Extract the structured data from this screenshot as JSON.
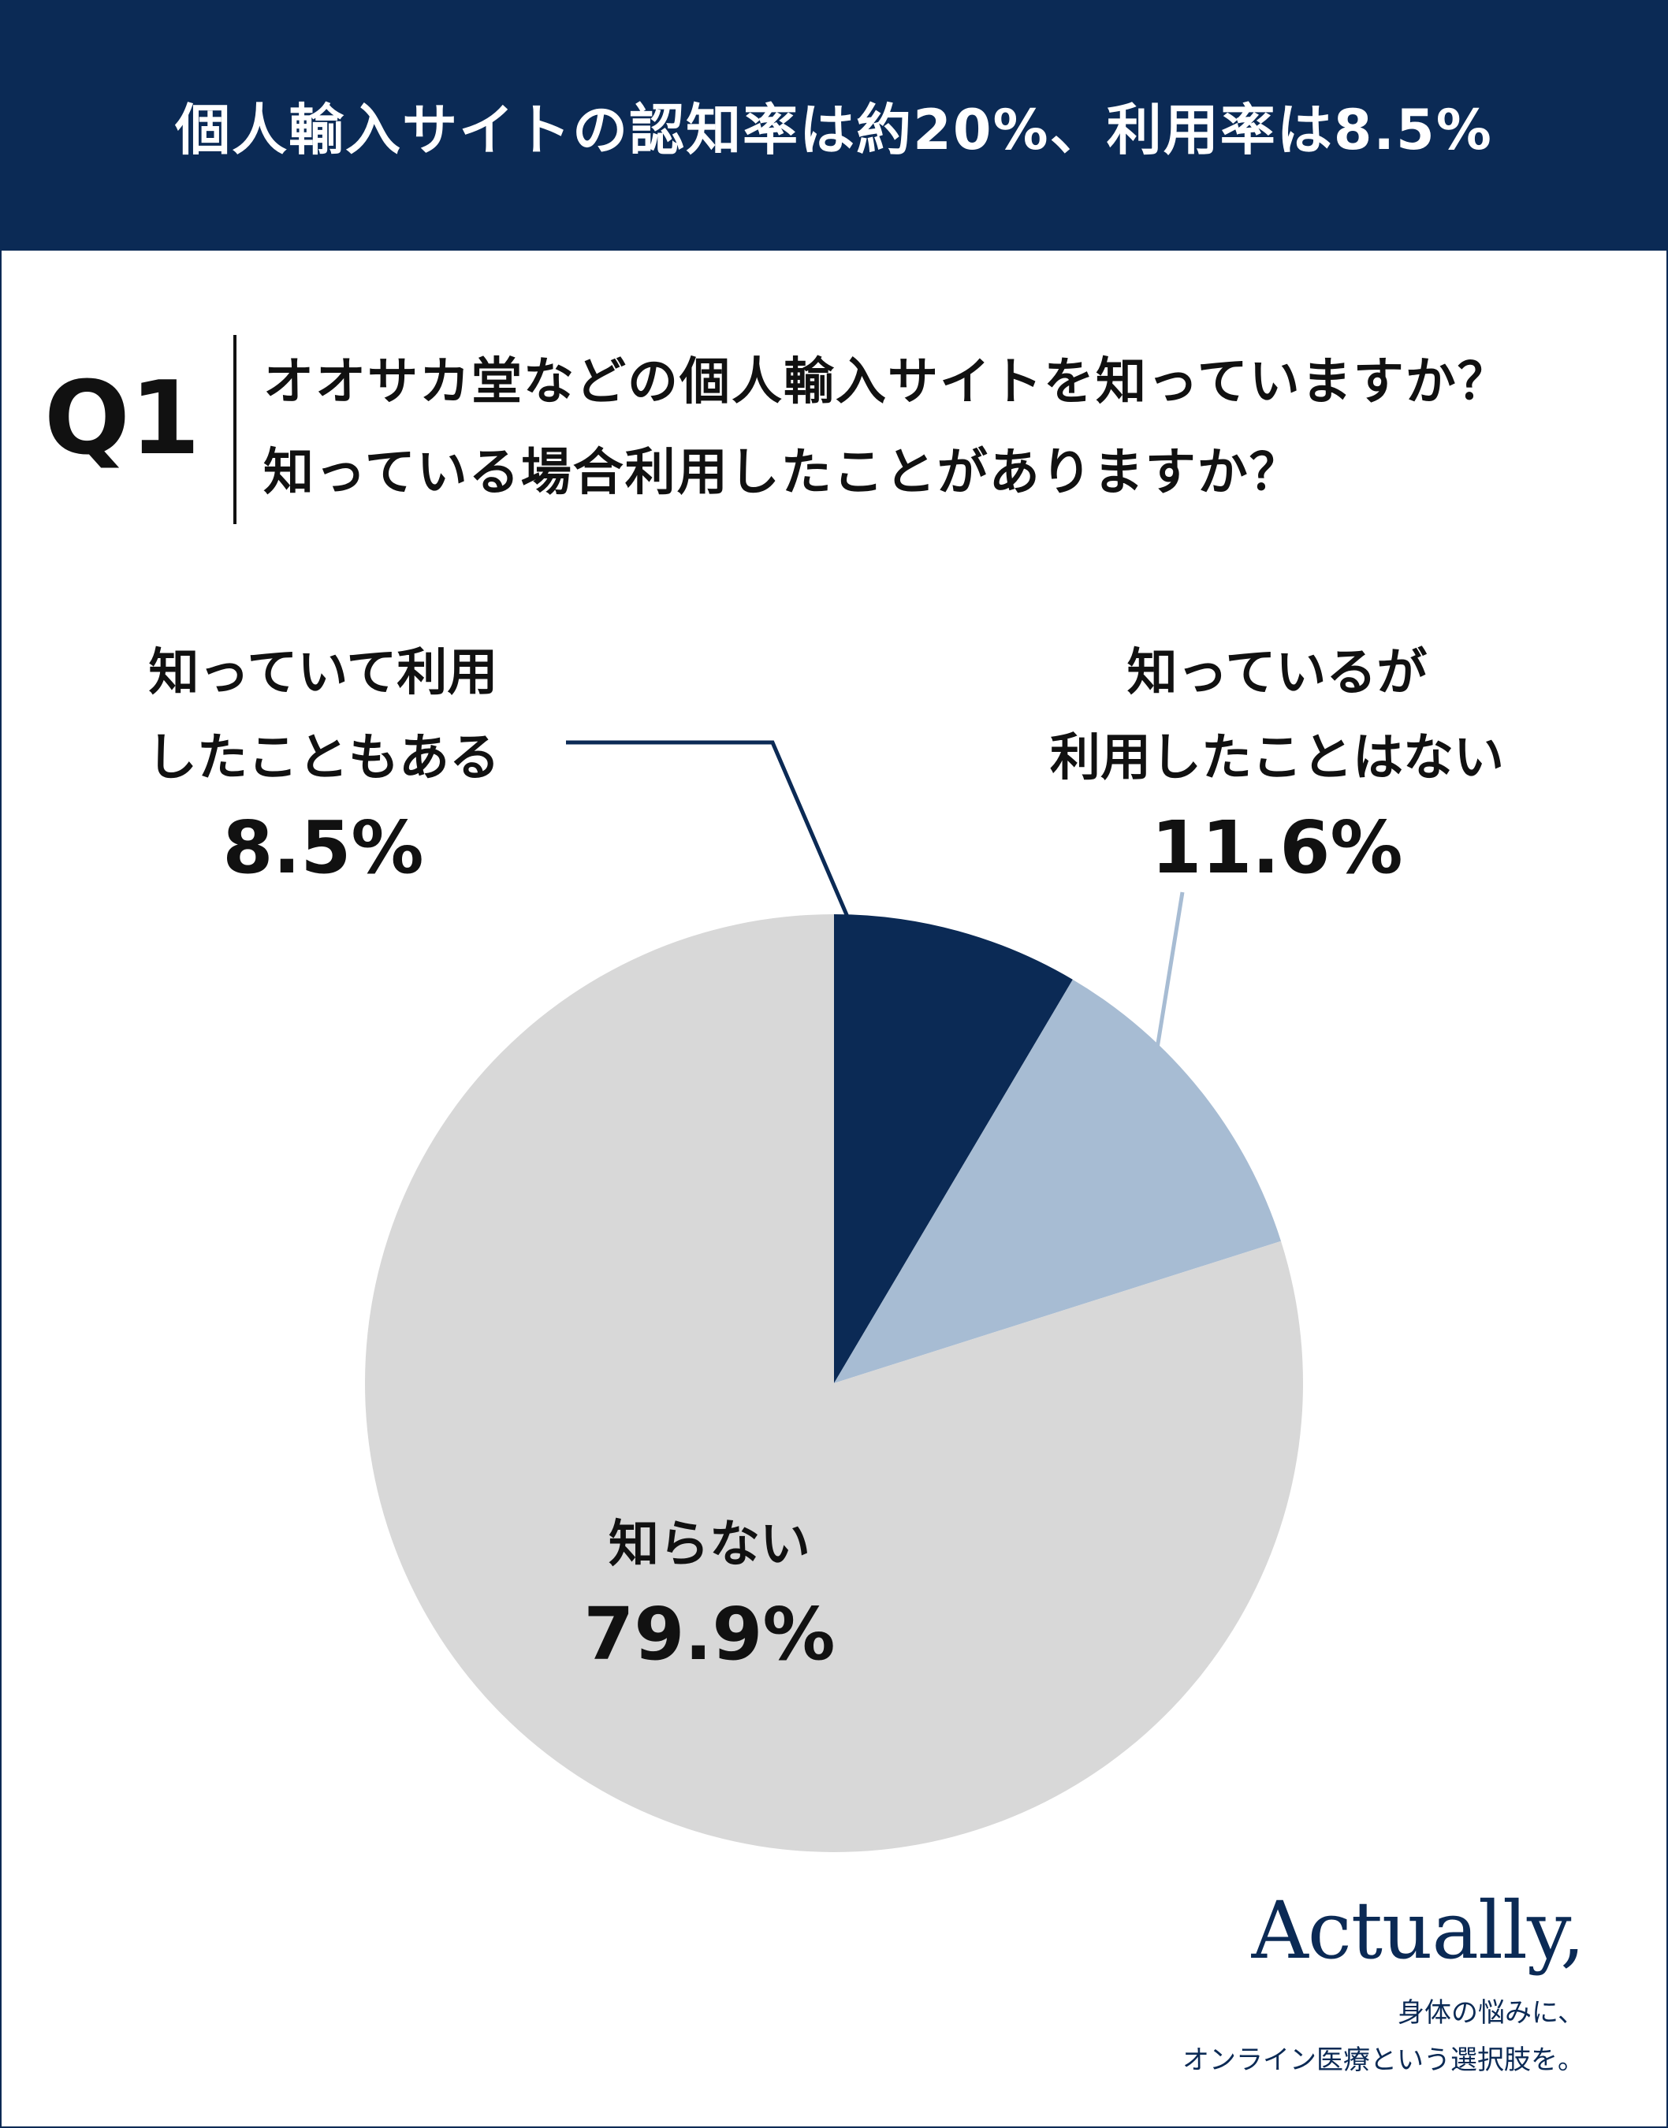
{
  "header": {
    "title": "個人輸入サイトの認知率は約20%、利用率は8.5%"
  },
  "question": {
    "label": "Q1",
    "text_line1": "オオサカ堂などの個人輸入サイトを知っていますか？",
    "text_line2": "知っている場合利用したことがありますか？"
  },
  "colors": {
    "navy": "#0b2a55",
    "light_blue": "#a7bcd3",
    "gray": "#d8d8d8"
  },
  "chart_data": {
    "type": "pie",
    "start_angle_deg": 0,
    "direction": "clockwise",
    "slices": [
      {
        "name_line1": "知っていて利用",
        "name_line2": "したこともある",
        "value": 8.5,
        "label": "8.5%",
        "color": "#0b2a55"
      },
      {
        "name_line1": "知っているが",
        "name_line2": "利用したことはない",
        "value": 11.6,
        "label": "11.6%",
        "color": "#a7bcd3"
      },
      {
        "name_line1": "知らない",
        "name_line2": "",
        "value": 79.9,
        "label": "79.9%",
        "color": "#d8d8d8"
      }
    ]
  },
  "brand": {
    "logo": "Actually,",
    "tagline_line1": "身体の悩みに、",
    "tagline_line2": "オンライン医療という選択肢を。"
  }
}
